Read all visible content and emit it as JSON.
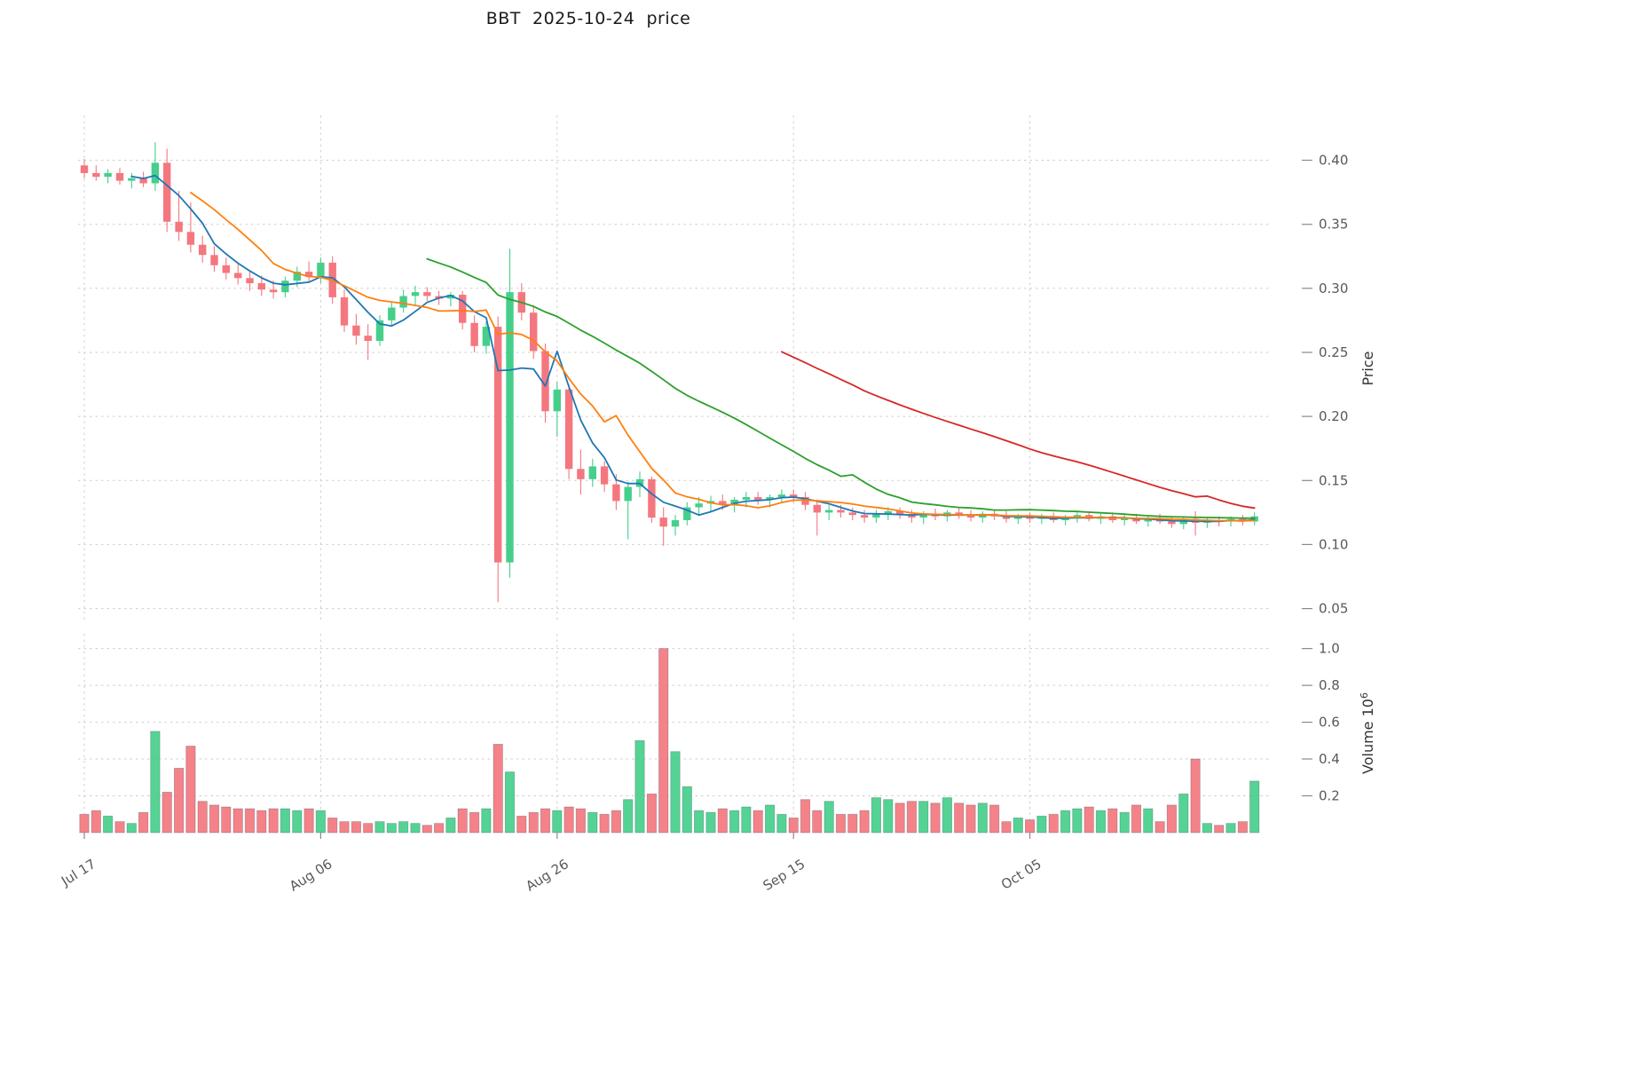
{
  "chart_data": {
    "type": "candlestick",
    "title": "BBT  2025-10-24  price",
    "legend": "none",
    "grid": "dashed",
    "panels": [
      "price",
      "volume"
    ],
    "price_axis": {
      "label": "Price",
      "side": "right",
      "range": [
        0.04,
        0.435
      ],
      "ticks": [
        {
          "value": 0.05,
          "label": "0.05"
        },
        {
          "value": 0.1,
          "label": "0.10"
        },
        {
          "value": 0.15,
          "label": "0.15"
        },
        {
          "value": 0.2,
          "label": "0.20"
        },
        {
          "value": 0.25,
          "label": "0.25"
        },
        {
          "value": 0.3,
          "label": "0.30"
        },
        {
          "value": 0.35,
          "label": "0.35"
        },
        {
          "value": 0.4,
          "label": "0.40"
        }
      ]
    },
    "volume_axis": {
      "label": "Volume",
      "unit_base": "10",
      "unit_exp": "6",
      "side": "right",
      "range": [
        0,
        1.08
      ],
      "ticks": [
        {
          "value": 0.2,
          "label": "0.2"
        },
        {
          "value": 0.4,
          "label": "0.4"
        },
        {
          "value": 0.6,
          "label": "0.6"
        },
        {
          "value": 0.8,
          "label": "0.8"
        },
        {
          "value": 1.0,
          "label": "1.0"
        }
      ]
    },
    "x_axis": {
      "frequency": "daily",
      "start_date": "2025-07-17",
      "end_date": "2025-10-24",
      "ticks": [
        {
          "index": 0,
          "label": "Jul 17"
        },
        {
          "index": 20,
          "label": "Aug 06"
        },
        {
          "index": 40,
          "label": "Aug 26"
        },
        {
          "index": 60,
          "label": "Sep 15"
        },
        {
          "index": 80,
          "label": "Oct 05"
        }
      ]
    },
    "moving_averages": [
      {
        "window": 5,
        "color_key": "ma5"
      },
      {
        "window": 10,
        "color_key": "ma10"
      },
      {
        "window": 30,
        "color_key": "ma30"
      },
      {
        "window": 60,
        "color_key": "ma60"
      }
    ],
    "colors": {
      "up": "#45cf8b",
      "down": "#f4777f",
      "ma5": "#1f77b4",
      "ma10": "#ff7f0e",
      "ma30": "#2ca02c",
      "ma60": "#d62728",
      "grid": "#c9c9c9",
      "tick_text": "#595959",
      "axis_title_text": "#333333",
      "bar_edge": "#37474f",
      "background": "#ffffff"
    },
    "candle_fields": [
      "open",
      "high",
      "low",
      "close",
      "volume_millions"
    ],
    "candles": [
      [
        0.396,
        0.401,
        0.386,
        0.39,
        0.1
      ],
      [
        0.39,
        0.396,
        0.384,
        0.387,
        0.12
      ],
      [
        0.387,
        0.393,
        0.382,
        0.39,
        0.09
      ],
      [
        0.39,
        0.394,
        0.381,
        0.384,
        0.06
      ],
      [
        0.384,
        0.39,
        0.378,
        0.386,
        0.05
      ],
      [
        0.386,
        0.391,
        0.379,
        0.382,
        0.11
      ],
      [
        0.382,
        0.414,
        0.376,
        0.398,
        0.55
      ],
      [
        0.398,
        0.409,
        0.344,
        0.352,
        0.22
      ],
      [
        0.352,
        0.376,
        0.337,
        0.344,
        0.35
      ],
      [
        0.344,
        0.367,
        0.328,
        0.334,
        0.47
      ],
      [
        0.334,
        0.341,
        0.32,
        0.326,
        0.17
      ],
      [
        0.326,
        0.333,
        0.313,
        0.318,
        0.15
      ],
      [
        0.318,
        0.324,
        0.307,
        0.312,
        0.14
      ],
      [
        0.312,
        0.319,
        0.303,
        0.308,
        0.13
      ],
      [
        0.308,
        0.314,
        0.298,
        0.304,
        0.13
      ],
      [
        0.304,
        0.31,
        0.294,
        0.299,
        0.12
      ],
      [
        0.299,
        0.306,
        0.292,
        0.297,
        0.13
      ],
      [
        0.297,
        0.309,
        0.293,
        0.306,
        0.13
      ],
      [
        0.306,
        0.317,
        0.301,
        0.313,
        0.12
      ],
      [
        0.313,
        0.321,
        0.305,
        0.309,
        0.13
      ],
      [
        0.309,
        0.324,
        0.304,
        0.32,
        0.12
      ],
      [
        0.32,
        0.325,
        0.288,
        0.293,
        0.08
      ],
      [
        0.293,
        0.299,
        0.266,
        0.271,
        0.06
      ],
      [
        0.271,
        0.28,
        0.256,
        0.263,
        0.06
      ],
      [
        0.263,
        0.272,
        0.244,
        0.259,
        0.05
      ],
      [
        0.259,
        0.279,
        0.255,
        0.275,
        0.06
      ],
      [
        0.275,
        0.289,
        0.271,
        0.285,
        0.05
      ],
      [
        0.285,
        0.299,
        0.281,
        0.294,
        0.06
      ],
      [
        0.294,
        0.302,
        0.287,
        0.297,
        0.05
      ],
      [
        0.297,
        0.301,
        0.29,
        0.294,
        0.04
      ],
      [
        0.294,
        0.298,
        0.287,
        0.292,
        0.05
      ],
      [
        0.292,
        0.297,
        0.286,
        0.295,
        0.08
      ],
      [
        0.295,
        0.298,
        0.268,
        0.273,
        0.13
      ],
      [
        0.273,
        0.279,
        0.25,
        0.255,
        0.11
      ],
      [
        0.255,
        0.274,
        0.249,
        0.27,
        0.13
      ],
      [
        0.27,
        0.278,
        0.055,
        0.086,
        0.48
      ],
      [
        0.086,
        0.331,
        0.074,
        0.297,
        0.33
      ],
      [
        0.297,
        0.304,
        0.275,
        0.281,
        0.09
      ],
      [
        0.281,
        0.287,
        0.245,
        0.251,
        0.11
      ],
      [
        0.251,
        0.257,
        0.195,
        0.204,
        0.13
      ],
      [
        0.204,
        0.227,
        0.184,
        0.221,
        0.12
      ],
      [
        0.221,
        0.225,
        0.151,
        0.159,
        0.14
      ],
      [
        0.159,
        0.174,
        0.139,
        0.151,
        0.13
      ],
      [
        0.151,
        0.167,
        0.145,
        0.161,
        0.11
      ],
      [
        0.161,
        0.165,
        0.141,
        0.147,
        0.1
      ],
      [
        0.147,
        0.155,
        0.127,
        0.134,
        0.12
      ],
      [
        0.134,
        0.149,
        0.104,
        0.145,
        0.18
      ],
      [
        0.145,
        0.157,
        0.137,
        0.151,
        0.5
      ],
      [
        0.151,
        0.153,
        0.117,
        0.121,
        0.21
      ],
      [
        0.121,
        0.129,
        0.099,
        0.114,
        1.0
      ],
      [
        0.114,
        0.123,
        0.107,
        0.119,
        0.44
      ],
      [
        0.119,
        0.133,
        0.115,
        0.129,
        0.25
      ],
      [
        0.129,
        0.137,
        0.123,
        0.132,
        0.12
      ],
      [
        0.132,
        0.138,
        0.126,
        0.134,
        0.11
      ],
      [
        0.134,
        0.139,
        0.127,
        0.131,
        0.13
      ],
      [
        0.131,
        0.137,
        0.125,
        0.135,
        0.12
      ],
      [
        0.135,
        0.141,
        0.129,
        0.137,
        0.14
      ],
      [
        0.137,
        0.141,
        0.131,
        0.135,
        0.12
      ],
      [
        0.135,
        0.139,
        0.129,
        0.137,
        0.15
      ],
      [
        0.137,
        0.143,
        0.133,
        0.139,
        0.1
      ],
      [
        0.139,
        0.143,
        0.133,
        0.137,
        0.08
      ],
      [
        0.137,
        0.141,
        0.127,
        0.131,
        0.18
      ],
      [
        0.131,
        0.135,
        0.107,
        0.125,
        0.12
      ],
      [
        0.125,
        0.131,
        0.119,
        0.127,
        0.17
      ],
      [
        0.127,
        0.131,
        0.121,
        0.125,
        0.1
      ],
      [
        0.125,
        0.129,
        0.119,
        0.123,
        0.1
      ],
      [
        0.123,
        0.127,
        0.117,
        0.121,
        0.12
      ],
      [
        0.121,
        0.127,
        0.117,
        0.124,
        0.19
      ],
      [
        0.124,
        0.129,
        0.119,
        0.126,
        0.18
      ],
      [
        0.126,
        0.129,
        0.12,
        0.123,
        0.16
      ],
      [
        0.123,
        0.127,
        0.117,
        0.121,
        0.17
      ],
      [
        0.121,
        0.126,
        0.116,
        0.124,
        0.17
      ],
      [
        0.124,
        0.128,
        0.119,
        0.122,
        0.16
      ],
      [
        0.122,
        0.127,
        0.118,
        0.125,
        0.19
      ],
      [
        0.125,
        0.129,
        0.12,
        0.123,
        0.16
      ],
      [
        0.123,
        0.127,
        0.118,
        0.121,
        0.15
      ],
      [
        0.121,
        0.126,
        0.117,
        0.124,
        0.16
      ],
      [
        0.124,
        0.127,
        0.119,
        0.122,
        0.15
      ],
      [
        0.122,
        0.126,
        0.117,
        0.12,
        0.06
      ],
      [
        0.12,
        0.124,
        0.116,
        0.122,
        0.08
      ],
      [
        0.122,
        0.125,
        0.117,
        0.12,
        0.07
      ],
      [
        0.12,
        0.124,
        0.116,
        0.121,
        0.09
      ],
      [
        0.121,
        0.125,
        0.117,
        0.119,
        0.1
      ],
      [
        0.119,
        0.123,
        0.115,
        0.121,
        0.12
      ],
      [
        0.121,
        0.125,
        0.117,
        0.123,
        0.13
      ],
      [
        0.123,
        0.126,
        0.118,
        0.12,
        0.14
      ],
      [
        0.12,
        0.124,
        0.116,
        0.122,
        0.12
      ],
      [
        0.122,
        0.125,
        0.117,
        0.119,
        0.13
      ],
      [
        0.119,
        0.123,
        0.115,
        0.121,
        0.11
      ],
      [
        0.121,
        0.124,
        0.116,
        0.118,
        0.15
      ],
      [
        0.118,
        0.122,
        0.114,
        0.12,
        0.13
      ],
      [
        0.12,
        0.124,
        0.116,
        0.118,
        0.06
      ],
      [
        0.118,
        0.122,
        0.113,
        0.116,
        0.15
      ],
      [
        0.116,
        0.122,
        0.112,
        0.12,
        0.21
      ],
      [
        0.12,
        0.126,
        0.107,
        0.117,
        0.4
      ],
      [
        0.117,
        0.121,
        0.113,
        0.119,
        0.05
      ],
      [
        0.119,
        0.122,
        0.114,
        0.118,
        0.04
      ],
      [
        0.118,
        0.122,
        0.114,
        0.12,
        0.05
      ],
      [
        0.12,
        0.123,
        0.115,
        0.118,
        0.06
      ],
      [
        0.118,
        0.125,
        0.115,
        0.122,
        0.28
      ]
    ]
  }
}
